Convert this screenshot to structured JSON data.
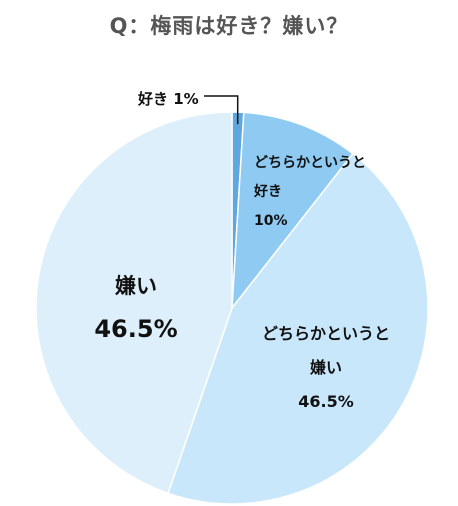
{
  "title": "Q：梅雨は好き？嫌い？",
  "colors": {
    "like": "#5fa8df",
    "somewhat_like": "#8fcaf3",
    "somewhat_dislike": "#c9e7fb",
    "dislike": "#deeffc",
    "edge": "#ffffff"
  },
  "chart_data": {
    "type": "pie",
    "title": "Q：梅雨は好き？嫌い？",
    "slices": [
      {
        "name": "好き",
        "value": 1,
        "label_lines": [
          "好き 1%"
        ]
      },
      {
        "name": "どちらかというと好き",
        "value": 10,
        "label_lines": [
          "どちらかというと",
          "好き",
          "10%"
        ]
      },
      {
        "name": "どちらかというと嫌い",
        "value": 46.5,
        "label_lines": [
          "どちらかというと",
          "嫌い",
          "46.5%"
        ]
      },
      {
        "name": "嫌い",
        "value": 46.5,
        "label_lines": [
          "嫌い",
          "46.5%"
        ]
      }
    ]
  }
}
